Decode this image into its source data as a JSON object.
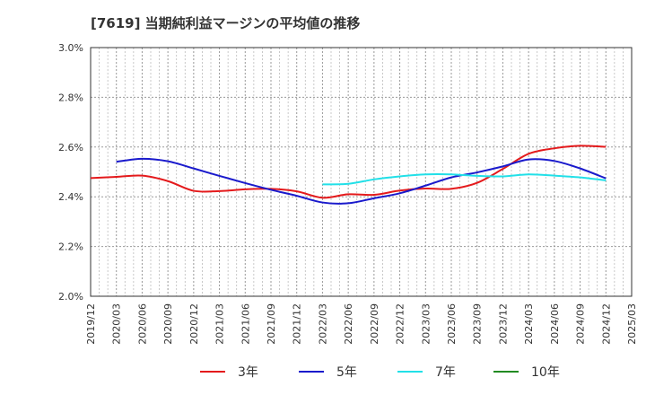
{
  "chart_data": {
    "type": "line",
    "title": "[7619]  当期純利益マージンの平均値の推移",
    "xlabel": "",
    "ylabel": "",
    "ylim": [
      2.0,
      3.0
    ],
    "yticks": [
      "2.0%",
      "2.2%",
      "2.4%",
      "2.6%",
      "2.8%",
      "3.0%"
    ],
    "ytick_values": [
      2.0,
      2.2,
      2.4,
      2.6,
      2.8,
      3.0
    ],
    "xticks": [
      "2019/12",
      "2020/03",
      "2020/06",
      "2020/09",
      "2020/12",
      "2021/03",
      "2021/06",
      "2021/09",
      "2021/12",
      "2022/03",
      "2022/06",
      "2022/09",
      "2022/12",
      "2023/03",
      "2023/06",
      "2023/09",
      "2023/12",
      "2024/03",
      "2024/06",
      "2024/09",
      "2024/12",
      "2025/03"
    ],
    "grid": true,
    "legend_position": "bottom",
    "series": [
      {
        "name": "3年",
        "color": "#e41a1c",
        "x": [
          "2019/12",
          "2020/03",
          "2020/06",
          "2020/09",
          "2020/12",
          "2021/03",
          "2021/06",
          "2021/09",
          "2021/12",
          "2022/03",
          "2022/06",
          "2022/09",
          "2022/12",
          "2023/03",
          "2023/06",
          "2023/09",
          "2023/12",
          "2024/03",
          "2024/06",
          "2024/09",
          "2024/12"
        ],
        "values": [
          2.475,
          2.48,
          2.485,
          2.463,
          2.424,
          2.423,
          2.43,
          2.432,
          2.422,
          2.396,
          2.41,
          2.408,
          2.425,
          2.433,
          2.432,
          2.456,
          2.512,
          2.573,
          2.595,
          2.605,
          2.601
        ]
      },
      {
        "name": "5年",
        "color": "#1a1acc",
        "x": [
          "2020/03",
          "2020/06",
          "2020/09",
          "2020/12",
          "2021/03",
          "2021/06",
          "2021/09",
          "2021/12",
          "2022/03",
          "2022/06",
          "2022/09",
          "2022/12",
          "2023/03",
          "2023/06",
          "2023/09",
          "2023/12",
          "2024/03",
          "2024/06",
          "2024/09",
          "2024/12"
        ],
        "values": [
          2.541,
          2.553,
          2.543,
          2.514,
          2.484,
          2.455,
          2.428,
          2.404,
          2.377,
          2.374,
          2.394,
          2.414,
          2.445,
          2.478,
          2.498,
          2.522,
          2.55,
          2.544,
          2.514,
          2.474
        ]
      },
      {
        "name": "7年",
        "color": "#22e0e8",
        "x": [
          "2022/03",
          "2022/06",
          "2022/09",
          "2022/12",
          "2023/03",
          "2023/06",
          "2023/09",
          "2023/12",
          "2024/03",
          "2024/06",
          "2024/09",
          "2024/12"
        ],
        "values": [
          2.45,
          2.452,
          2.47,
          2.482,
          2.49,
          2.49,
          2.484,
          2.482,
          2.49,
          2.485,
          2.478,
          2.466
        ]
      },
      {
        "name": "10年",
        "color": "#228b22",
        "x": [],
        "values": []
      }
    ]
  }
}
